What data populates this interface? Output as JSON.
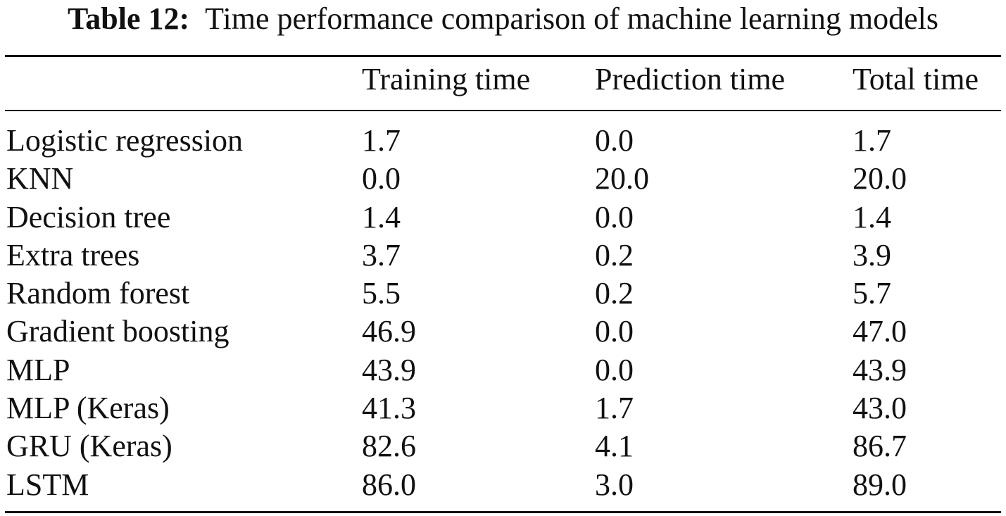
{
  "caption": {
    "label": "Table 12:",
    "text": "Time performance comparison of machine learning models"
  },
  "table": {
    "headers": [
      "",
      "Training time",
      "Prediction time",
      "Total time"
    ],
    "rows": [
      [
        "Logistic regression",
        "1.7",
        "0.0",
        "1.7"
      ],
      [
        "KNN",
        "0.0",
        "20.0",
        "20.0"
      ],
      [
        "Decision tree",
        "1.4",
        "0.0",
        "1.4"
      ],
      [
        "Extra trees",
        "3.7",
        "0.2",
        "3.9"
      ],
      [
        "Random forest",
        "5.5",
        "0.2",
        "5.7"
      ],
      [
        "Gradient boosting",
        "46.9",
        "0.0",
        "47.0"
      ],
      [
        "MLP",
        "43.9",
        "0.0",
        "43.9"
      ],
      [
        "MLP (Keras)",
        "41.3",
        "1.7",
        "43.0"
      ],
      [
        "GRU (Keras)",
        "82.6",
        "4.1",
        "86.7"
      ],
      [
        "LSTM",
        "86.0",
        "3.0",
        "89.0"
      ]
    ]
  }
}
